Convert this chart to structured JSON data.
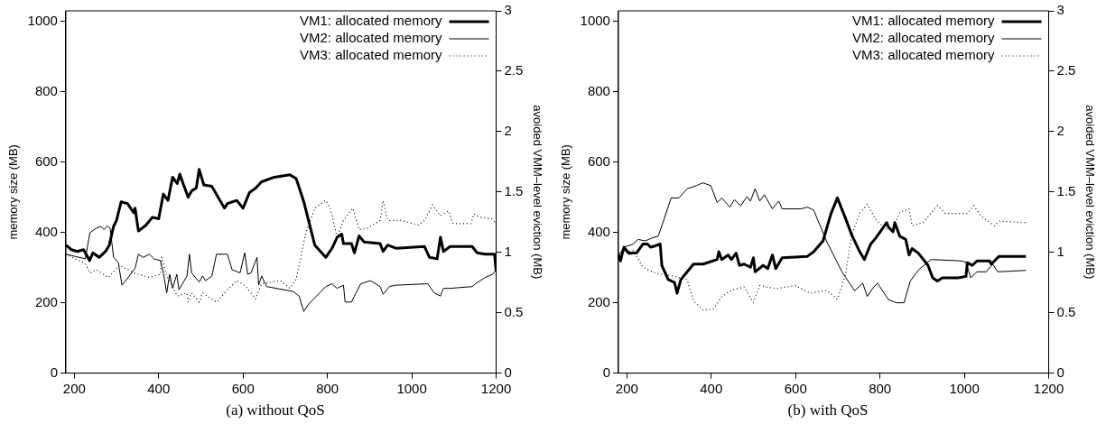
{
  "chart_data": [
    {
      "type": "line",
      "title": "(a) without QoS",
      "ylabel": "memory size (MB)",
      "y2label": "avoided VMM–level eviction (MB)",
      "xlim": [
        180,
        1200
      ],
      "xticks": [
        200,
        400,
        600,
        800,
        1000,
        1200
      ],
      "ylim": [
        0,
        1030
      ],
      "yticks": [
        0,
        200,
        400,
        600,
        800,
        1000
      ],
      "y2lim": [
        0,
        3
      ],
      "y2ticks": [
        0,
        0.5,
        1,
        1.5,
        2,
        2.5,
        3
      ],
      "grid": false,
      "legend": "top right",
      "marker": "none",
      "series": [
        {
          "name": "VM1: allocated memory",
          "color": "#000000",
          "line_style": "solid",
          "x": [
            180,
            193,
            207,
            222,
            236,
            244,
            259,
            274,
            283,
            293,
            300,
            311,
            326,
            341,
            344,
            352,
            370,
            385,
            400,
            411,
            422,
            433,
            444,
            450,
            459,
            470,
            478,
            489,
            496,
            507,
            526,
            541,
            556,
            563,
            585,
            600,
            615,
            630,
            644,
            674,
            711,
            726,
            744,
            770,
            796,
            811,
            823,
            834,
            838,
            857,
            864,
            875,
            887,
            925,
            932,
            943,
            962,
            1030,
            1042,
            1060,
            1068,
            1075,
            1091,
            1143,
            1155,
            1174,
            1196,
            1200
          ],
          "values": [
            364,
            351,
            346,
            351,
            320,
            342,
            329,
            346,
            364,
            417,
            434,
            487,
            482,
            456,
            469,
            404,
            421,
            443,
            439,
            509,
            491,
            557,
            539,
            566,
            535,
            500,
            518,
            526,
            579,
            535,
            531,
            500,
            469,
            482,
            491,
            469,
            513,
            526,
            544,
            557,
            564,
            553,
            487,
            364,
            329,
            355,
            386,
            395,
            368,
            368,
            342,
            390,
            373,
            368,
            346,
            364,
            355,
            360,
            329,
            325,
            386,
            346,
            360,
            360,
            342,
            338,
            338,
            290
          ]
        },
        {
          "name": "VM2: allocated memory",
          "color": "#000000",
          "line_style": "solid",
          "x": [
            180,
            226,
            237,
            252,
            263,
            270,
            278,
            285,
            293,
            304,
            313,
            322,
            344,
            352,
            363,
            378,
            389,
            404,
            411,
            419,
            426,
            433,
            443,
            448,
            467,
            473,
            478,
            496,
            504,
            511,
            526,
            537,
            563,
            574,
            593,
            604,
            611,
            619,
            633,
            637,
            644,
            656,
            719,
            733,
            744,
            756,
            774,
            796,
            811,
            823,
            838,
            842,
            857,
            864,
            879,
            902,
            925,
            932,
            947,
            962,
            1038,
            1053,
            1068,
            1075,
            1091,
            1143,
            1151,
            1174,
            1192,
            1200
          ],
          "values": [
            338,
            325,
            399,
            412,
            417,
            408,
            418,
            412,
            329,
            316,
            250,
            263,
            298,
            338,
            329,
            338,
            325,
            320,
            285,
            228,
            281,
            241,
            281,
            237,
            276,
            338,
            285,
            259,
            276,
            263,
            276,
            338,
            338,
            294,
            285,
            342,
            281,
            285,
            329,
            250,
            276,
            246,
            232,
            219,
            175,
            197,
            219,
            246,
            254,
            241,
            250,
            202,
            202,
            219,
            254,
            263,
            246,
            224,
            246,
            250,
            254,
            228,
            219,
            241,
            241,
            246,
            254,
            272,
            281,
            294
          ]
        },
        {
          "name": "VM3: allocated memory",
          "color": "#000000",
          "line_style": "dotted",
          "x": [
            180,
            226,
            237,
            252,
            281,
            307,
            341,
            378,
            404,
            407,
            419,
            426,
            444,
            467,
            470,
            478,
            496,
            504,
            537,
            556,
            585,
            607,
            630,
            644,
            689,
            711,
            726,
            748,
            770,
            796,
            807,
            823,
            838,
            860,
            875,
            894,
            925,
            932,
            943,
            977,
            1015,
            1030,
            1049,
            1068,
            1087,
            1098,
            1140,
            1147,
            1162,
            1189,
            1200
          ],
          "values": [
            338,
            311,
            285,
            294,
            272,
            307,
            285,
            272,
            281,
            329,
            276,
            263,
            219,
            228,
            202,
            228,
            202,
            228,
            202,
            228,
            263,
            246,
            211,
            254,
            263,
            241,
            268,
            395,
            469,
            491,
            469,
            386,
            434,
            469,
            408,
            412,
            434,
            491,
            434,
            434,
            421,
            434,
            478,
            447,
            461,
            425,
            425,
            452,
            443,
            439,
            425
          ]
        }
      ]
    },
    {
      "type": "line",
      "title": "(b) with QoS",
      "ylabel": "memory size (MB)",
      "y2label": "avoided VMM–level eviction (MB)",
      "xlim": [
        180,
        1200
      ],
      "xticks": [
        200,
        400,
        600,
        800,
        1000,
        1200
      ],
      "ylim": [
        0,
        1030
      ],
      "yticks": [
        0,
        200,
        400,
        600,
        800,
        1000
      ],
      "y2lim": [
        0,
        3
      ],
      "y2ticks": [
        0,
        0.5,
        1,
        1.5,
        2,
        2.5,
        3
      ],
      "grid": false,
      "legend": "top right",
      "marker": "none",
      "series": [
        {
          "name": "VM1: allocated memory",
          "color": "#000000",
          "line_style": "solid",
          "x": [
            180,
            185,
            193,
            204,
            223,
            238,
            249,
            256,
            268,
            279,
            283,
            298,
            313,
            319,
            328,
            343,
            358,
            381,
            414,
            418,
            425,
            440,
            448,
            459,
            467,
            478,
            493,
            500,
            504,
            523,
            534,
            545,
            553,
            568,
            628,
            643,
            665,
            684,
            699,
            718,
            733,
            752,
            763,
            778,
            790,
            816,
            820,
            831,
            835,
            847,
            861,
            869,
            876,
            891,
            914,
            925,
            936,
            948,
            985,
            1004,
            1007,
            1019,
            1030,
            1060,
            1064,
            1082,
            1146
          ],
          "values": [
            336,
            319,
            358,
            341,
            342,
            367,
            367,
            358,
            362,
            367,
            306,
            266,
            258,
            227,
            266,
            288,
            310,
            310,
            323,
            345,
            323,
            336,
            323,
            341,
            306,
            310,
            301,
            328,
            288,
            306,
            297,
            336,
            297,
            328,
            332,
            345,
            376,
            454,
            498,
            441,
            393,
            345,
            323,
            367,
            384,
            428,
            415,
            402,
            428,
            389,
            380,
            336,
            354,
            341,
            306,
            271,
            262,
            271,
            271,
            275,
            314,
            306,
            319,
            319,
            310,
            332,
            332
          ]
        },
        {
          "name": "VM2: allocated memory",
          "color": "#000000",
          "line_style": "solid",
          "x": [
            180,
            193,
            215,
            226,
            244,
            259,
            274,
            283,
            305,
            323,
            343,
            365,
            380,
            399,
            414,
            425,
            444,
            455,
            470,
            485,
            493,
            504,
            515,
            526,
            545,
            560,
            568,
            613,
            628,
            643,
            673,
            710,
            740,
            759,
            770,
            782,
            794,
            820,
            839,
            857,
            872,
            891,
            921,
            993,
            1004,
            1015,
            1030,
            1052,
            1067,
            1079,
            1146
          ],
          "values": [
            332,
            358,
            367,
            380,
            376,
            384,
            389,
            419,
            498,
            498,
            524,
            533,
            541,
            533,
            485,
            498,
            472,
            493,
            476,
            502,
            489,
            524,
            489,
            507,
            467,
            489,
            467,
            467,
            472,
            463,
            376,
            288,
            234,
            256,
            218,
            240,
            256,
            209,
            200,
            200,
            262,
            293,
            323,
            319,
            315,
            271,
            288,
            288,
            310,
            288,
            292
          ]
        },
        {
          "name": "VM3: allocated memory",
          "color": "#000000",
          "line_style": "dotted",
          "x": [
            180,
            215,
            238,
            268,
            298,
            343,
            358,
            381,
            406,
            425,
            448,
            478,
            500,
            515,
            553,
            598,
            635,
            673,
            699,
            718,
            733,
            752,
            770,
            790,
            812,
            831,
            847,
            869,
            876,
            902,
            936,
            955,
            1007,
            1022,
            1041,
            1071,
            1082,
            1146
          ],
          "values": [
            341,
            349,
            301,
            284,
            279,
            266,
            205,
            179,
            183,
            218,
            236,
            245,
            201,
            249,
            240,
            249,
            227,
            236,
            210,
            279,
            393,
            454,
            480,
            437,
            410,
            406,
            458,
            467,
            419,
            428,
            476,
            454,
            454,
            476,
            445,
            419,
            432,
            428
          ]
        }
      ]
    }
  ]
}
